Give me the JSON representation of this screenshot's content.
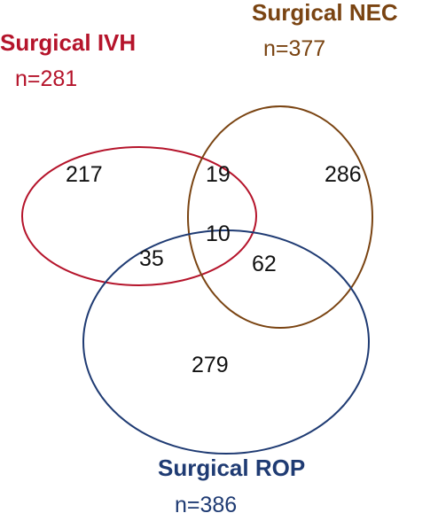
{
  "sets": {
    "ivh": {
      "title": "Surgical IVH",
      "count": "n=281",
      "color": "#b5142b"
    },
    "nec": {
      "title": "Surgical NEC",
      "count": "n=377",
      "color": "#7a4412"
    },
    "rop": {
      "title": "Surgical ROP",
      "count": "n=386",
      "color": "#1f3b73"
    }
  },
  "regions": {
    "ivh_only": "217",
    "ivh_nec": "19",
    "nec_only": "286",
    "all_three": "10",
    "ivh_rop": "35",
    "nec_rop": "62",
    "rop_only": "279"
  }
}
